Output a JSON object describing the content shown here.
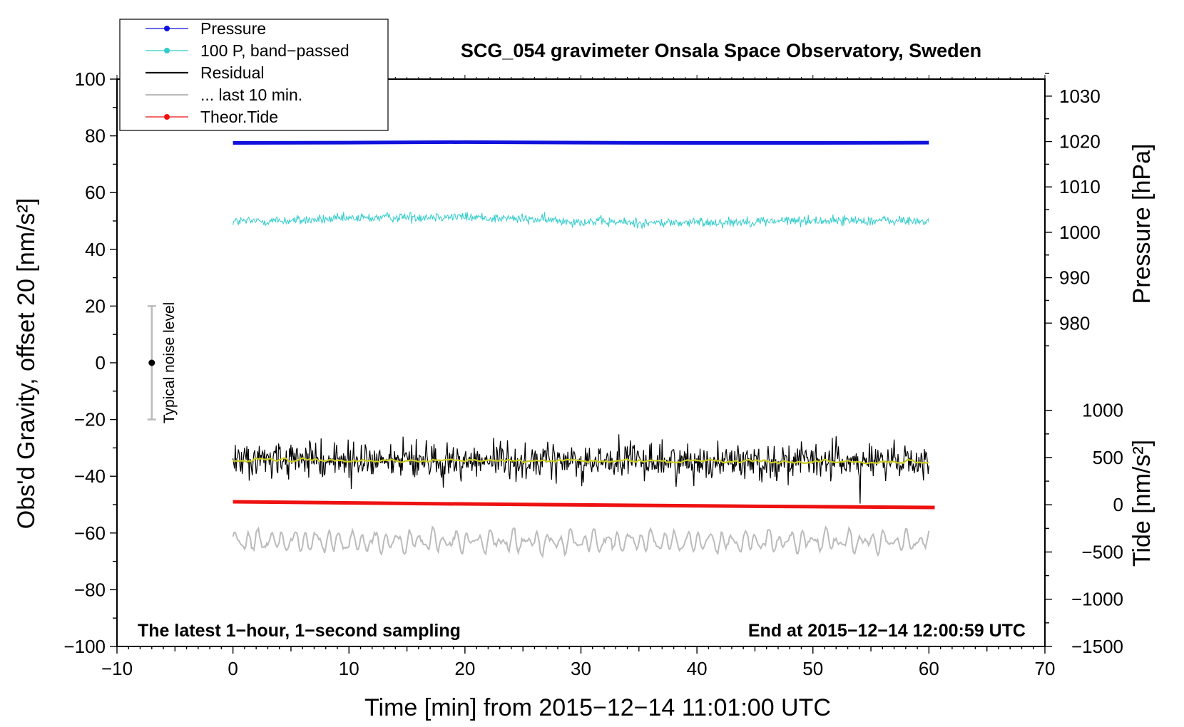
{
  "chart_data": {
    "type": "line",
    "title": "SCG_054 gravimeter Onsala Space Observatory, Sweden",
    "xlabel": "Time [min] from 2015−12−14 11:01:00 UTC",
    "ylabel_left": "Obs'd Gravity, offset 20 [nm/s²]",
    "ylabel_right_pressure": "Pressure [hPa]",
    "ylabel_right_tide": "Tide [nm/s²]",
    "xlim": [
      -10,
      70
    ],
    "ylim": [
      -100,
      100
    ],
    "x_ticks": [
      -10,
      0,
      10,
      20,
      30,
      40,
      50,
      60,
      70
    ],
    "x_tick_labels": [
      "−10",
      "0",
      "10",
      "20",
      "30",
      "40",
      "50",
      "60",
      "70"
    ],
    "y_ticks": [
      -100,
      -80,
      -60,
      -40,
      -20,
      0,
      20,
      40,
      60,
      80,
      100
    ],
    "y_tick_labels": [
      "−100",
      "−80",
      "−60",
      "−40",
      "−20",
      "0",
      "20",
      "40",
      "60",
      "80",
      "100"
    ],
    "pressure_axis": {
      "ticks": [
        980,
        990,
        1000,
        1010,
        1020,
        1030
      ],
      "tick_labels": [
        "980",
        "990",
        "1000",
        "1010",
        "1020",
        "1030"
      ],
      "anchor_value": 1000,
      "anchor_left_y": 46.0,
      "left_units_per_hpa": 1.6
    },
    "tide_axis": {
      "ticks": [
        -1500,
        -1000,
        -500,
        0,
        500,
        1000
      ],
      "tick_labels": [
        "−1500",
        "−1000",
        "−500",
        "0",
        "500",
        "1000"
      ],
      "anchor_value": -1500,
      "anchor_left_y": -100,
      "left_units_per_nms2": 0.0333
    },
    "series": [
      {
        "name": "Pressure",
        "key": "pressure",
        "color": "#1111dd",
        "style": "thick",
        "x": [
          0,
          10,
          20,
          30,
          40,
          50,
          60
        ],
        "y": [
          77.5,
          77.6,
          77.8,
          77.6,
          77.5,
          77.5,
          77.6
        ]
      },
      {
        "name": "100 P, band−passed",
        "key": "bandpassed",
        "color": "#33cccc",
        "style": "noisy",
        "x": [
          0,
          60
        ],
        "base": [
          49.8,
          49.9
        ],
        "amp": 0.9,
        "wander": [
          0,
          0.4,
          1.3,
          1.8,
          1.0,
          0.0,
          -0.6,
          -0.3,
          0.2,
          0.3,
          0.0
        ]
      },
      {
        "name": "Residual",
        "key": "residual",
        "color": "#000000",
        "style": "noisy",
        "x": [
          0,
          60
        ],
        "base": [
          -34.4,
          -34.8
        ],
        "amp": 3.2
      },
      {
        "name": "... last 10 min.",
        "key": "last10",
        "color": "#bbbbbb",
        "style": "wave",
        "x": [
          0,
          60
        ],
        "base": [
          -63,
          -63
        ],
        "amp": 3.4
      },
      {
        "name": "Theor.Tide",
        "key": "tide",
        "color": "#ee1111",
        "style": "thick",
        "x": [
          0,
          15,
          30,
          45,
          60.5
        ],
        "y": [
          -49.0,
          -49.6,
          -50.1,
          -50.6,
          -51.0
        ]
      },
      {
        "name": "",
        "key": "residual_smooth",
        "color": "#cccc22",
        "style": "smooth",
        "x": [
          0,
          60
        ],
        "base": [
          -34.4,
          -34.8
        ],
        "amp": 0.5
      }
    ],
    "noise_bar": {
      "label": "Typical noise level",
      "x": -7,
      "center": 0,
      "low": -20,
      "high": 20
    },
    "annotations": {
      "left": "The latest 1−hour, 1−second sampling",
      "right": "End at 2015−12−14 12:00:59 UTC"
    },
    "legend": {
      "position": "top-left",
      "entries": [
        {
          "label": "Pressure",
          "color": "#1111dd",
          "marker": true
        },
        {
          "label": "100 P, band−passed",
          "color": "#33cccc",
          "marker": true
        },
        {
          "label": "Residual",
          "color": "#000000",
          "marker": false
        },
        {
          "label": "... last 10 min.",
          "color": "#bbbbbb",
          "marker": false
        },
        {
          "label": "Theor.Tide",
          "color": "#ee1111",
          "marker": true
        }
      ]
    }
  }
}
